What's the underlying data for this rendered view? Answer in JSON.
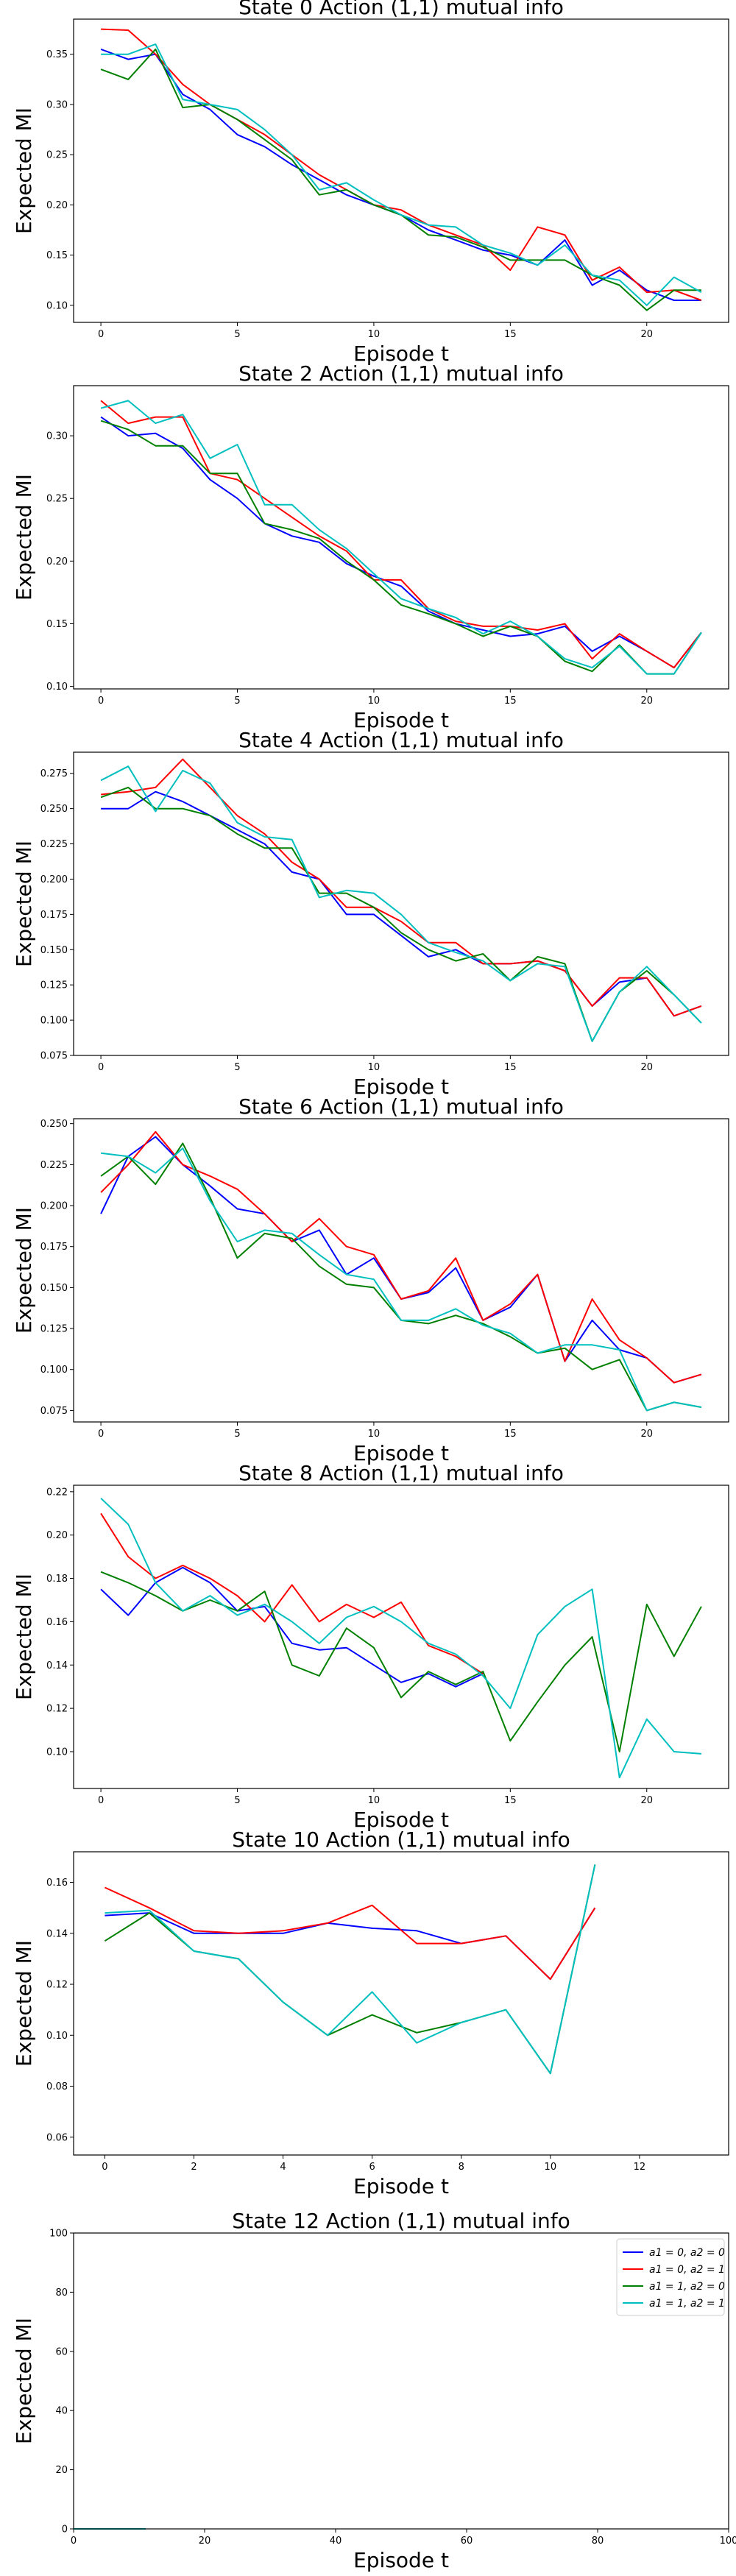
{
  "colors": {
    "a1=0, a2=0": "#0000ff",
    "a1=0, a2=1": "#ff0000",
    "a1=1, a2=0": "#008000",
    "a1=1, a2=1": "#00bfbf"
  },
  "legend": {
    "placement": "top-right",
    "entries": [
      "a1 = 0, a2 = 0",
      "a1 = 0, a2 = 1",
      "a1 = 1, a2 = 0",
      "a1 = 1, a2 = 1"
    ]
  },
  "chart_data": [
    {
      "type": "line",
      "title": "State 0 Action (1,1) mutual info",
      "xlabel": "Episode t",
      "ylabel": "Expected MI",
      "xlim": [
        -1,
        23
      ],
      "ylim": [
        0.083,
        0.385
      ],
      "xticks": [
        0,
        5,
        10,
        15,
        20
      ],
      "yticks": [
        0.1,
        0.15,
        0.2,
        0.25,
        0.3,
        0.35
      ],
      "ytick_labels": [
        "0.10",
        "0.15",
        "0.20",
        "0.25",
        "0.30",
        "0.35"
      ],
      "grid": false,
      "x": [
        0,
        1,
        2,
        3,
        4,
        5,
        6,
        7,
        8,
        9,
        10,
        11,
        12,
        13,
        14,
        15,
        16,
        17,
        18,
        19,
        20,
        21,
        22
      ],
      "series": [
        {
          "name": "a1=0, a2=0",
          "values": [
            0.355,
            0.345,
            0.35,
            0.31,
            0.295,
            0.27,
            0.258,
            0.24,
            0.225,
            0.21,
            0.2,
            0.19,
            0.175,
            0.165,
            0.155,
            0.15,
            0.14,
            0.165,
            0.12,
            0.135,
            0.115,
            0.105,
            0.105
          ]
        },
        {
          "name": "a1=0, a2=1",
          "values": [
            0.375,
            0.374,
            0.35,
            0.32,
            0.3,
            0.285,
            0.27,
            0.25,
            0.23,
            0.215,
            0.2,
            0.195,
            0.18,
            0.17,
            0.16,
            0.135,
            0.178,
            0.17,
            0.125,
            0.138,
            0.113,
            0.115,
            0.105
          ]
        },
        {
          "name": "a1=1, a2=0",
          "values": [
            0.335,
            0.325,
            0.355,
            0.297,
            0.3,
            0.285,
            0.265,
            0.245,
            0.21,
            0.215,
            0.2,
            0.19,
            0.17,
            0.168,
            0.158,
            0.145,
            0.145,
            0.145,
            0.13,
            0.12,
            0.095,
            0.115,
            0.115
          ]
        },
        {
          "name": "a1=1, a2=1",
          "values": [
            0.35,
            0.35,
            0.36,
            0.305,
            0.3,
            0.295,
            0.275,
            0.25,
            0.215,
            0.222,
            0.205,
            0.19,
            0.18,
            0.178,
            0.16,
            0.152,
            0.14,
            0.16,
            0.13,
            0.125,
            0.1,
            0.128,
            0.113
          ]
        }
      ]
    },
    {
      "type": "line",
      "title": "State 2 Action (1,1) mutual info",
      "xlabel": "Episode t",
      "ylabel": "Expected MI",
      "xlim": [
        -1,
        23
      ],
      "ylim": [
        0.098,
        0.34
      ],
      "xticks": [
        0,
        5,
        10,
        15,
        20
      ],
      "yticks": [
        0.1,
        0.15,
        0.2,
        0.25,
        0.3
      ],
      "ytick_labels": [
        "0.10",
        "0.15",
        "0.20",
        "0.25",
        "0.30"
      ],
      "grid": false,
      "x": [
        0,
        1,
        2,
        3,
        4,
        5,
        6,
        7,
        8,
        9,
        10,
        11,
        12,
        13,
        14,
        15,
        16,
        17,
        18,
        19,
        20,
        21,
        22
      ],
      "series": [
        {
          "name": "a1=0, a2=0",
          "values": [
            0.315,
            0.3,
            0.302,
            0.29,
            0.265,
            0.25,
            0.23,
            0.22,
            0.215,
            0.198,
            0.188,
            0.18,
            0.16,
            0.15,
            0.145,
            0.14,
            0.142,
            0.148,
            0.128,
            0.14,
            0.128,
            0.115,
            0.143
          ]
        },
        {
          "name": "a1=0, a2=1",
          "values": [
            0.328,
            0.31,
            0.315,
            0.315,
            0.27,
            0.265,
            0.25,
            0.235,
            0.22,
            0.208,
            0.185,
            0.185,
            0.162,
            0.152,
            0.148,
            0.148,
            0.145,
            0.15,
            0.122,
            0.142,
            0.128,
            0.115,
            0.143
          ]
        },
        {
          "name": "a1=1, a2=0",
          "values": [
            0.312,
            0.305,
            0.292,
            0.292,
            0.27,
            0.27,
            0.23,
            0.225,
            0.218,
            0.2,
            0.185,
            0.165,
            0.158,
            0.15,
            0.14,
            0.148,
            0.14,
            0.12,
            0.112,
            0.133,
            0.11,
            0.11,
            0.143
          ]
        },
        {
          "name": "a1=1, a2=1",
          "values": [
            0.322,
            0.328,
            0.31,
            0.317,
            0.282,
            0.293,
            0.245,
            0.245,
            0.225,
            0.21,
            0.19,
            0.17,
            0.162,
            0.155,
            0.142,
            0.152,
            0.14,
            0.122,
            0.115,
            0.132,
            0.11,
            0.11,
            0.143
          ]
        }
      ]
    },
    {
      "type": "line",
      "title": "State 4 Action (1,1) mutual info",
      "xlabel": "Episode t",
      "ylabel": "Expected MI",
      "xlim": [
        -1,
        23
      ],
      "ylim": [
        0.075,
        0.29
      ],
      "xticks": [
        0,
        5,
        10,
        15,
        20
      ],
      "yticks": [
        0.075,
        0.1,
        0.125,
        0.15,
        0.175,
        0.2,
        0.225,
        0.25,
        0.275
      ],
      "ytick_labels": [
        "0.075",
        "0.100",
        "0.125",
        "0.150",
        "0.175",
        "0.200",
        "0.225",
        "0.250",
        "0.275"
      ],
      "grid": false,
      "x": [
        0,
        1,
        2,
        3,
        4,
        5,
        6,
        7,
        8,
        9,
        10,
        11,
        12,
        13,
        14,
        15,
        16,
        17,
        18,
        19,
        20,
        21,
        22
      ],
      "series": [
        {
          "name": "a1=0, a2=0",
          "values": [
            0.25,
            0.25,
            0.262,
            0.255,
            0.245,
            0.235,
            0.225,
            0.205,
            0.2,
            0.175,
            0.175,
            0.16,
            0.145,
            0.15,
            0.14,
            0.14,
            0.142,
            0.135,
            0.11,
            0.127,
            0.13,
            0.103,
            0.11
          ]
        },
        {
          "name": "a1=0, a2=1",
          "values": [
            0.26,
            0.262,
            0.265,
            0.285,
            0.265,
            0.245,
            0.232,
            0.212,
            0.2,
            0.18,
            0.18,
            0.17,
            0.155,
            0.155,
            0.14,
            0.14,
            0.142,
            0.135,
            0.11,
            0.13,
            0.13,
            0.103,
            0.11
          ]
        },
        {
          "name": "a1=1, a2=0",
          "values": [
            0.258,
            0.265,
            0.25,
            0.25,
            0.245,
            0.232,
            0.222,
            0.222,
            0.19,
            0.19,
            0.18,
            0.162,
            0.15,
            0.142,
            0.147,
            0.128,
            0.145,
            0.14,
            0.085,
            0.12,
            0.135,
            0.118,
            0.098
          ]
        },
        {
          "name": "a1=1, a2=1",
          "values": [
            0.27,
            0.28,
            0.248,
            0.277,
            0.268,
            0.24,
            0.23,
            0.228,
            0.187,
            0.192,
            0.19,
            0.175,
            0.155,
            0.148,
            0.142,
            0.128,
            0.14,
            0.138,
            0.085,
            0.12,
            0.138,
            0.118,
            0.098
          ]
        }
      ]
    },
    {
      "type": "line",
      "title": "State 6 Action (1,1) mutual info",
      "xlabel": "Episode t",
      "ylabel": "Expected MI",
      "xlim": [
        -1,
        23
      ],
      "ylim": [
        0.068,
        0.253
      ],
      "xticks": [
        0,
        5,
        10,
        15,
        20
      ],
      "yticks": [
        0.075,
        0.1,
        0.125,
        0.15,
        0.175,
        0.2,
        0.225,
        0.25
      ],
      "ytick_labels": [
        "0.075",
        "0.100",
        "0.125",
        "0.150",
        "0.175",
        "0.200",
        "0.225",
        "0.250"
      ],
      "grid": false,
      "x": [
        0,
        1,
        2,
        3,
        4,
        5,
        6,
        7,
        8,
        9,
        10,
        11,
        12,
        13,
        14,
        15,
        16,
        17,
        18,
        19,
        20,
        21,
        22
      ],
      "series": [
        {
          "name": "a1=0, a2=0",
          "values": [
            0.195,
            0.23,
            0.242,
            0.225,
            0.212,
            0.198,
            0.195,
            0.178,
            0.185,
            0.158,
            0.168,
            0.143,
            0.147,
            0.162,
            0.13,
            0.138,
            0.158,
            0.105,
            0.13,
            0.112,
            0.107,
            0.092,
            0.097
          ]
        },
        {
          "name": "a1=0, a2=1",
          "values": [
            0.208,
            0.225,
            0.245,
            0.225,
            0.218,
            0.21,
            0.195,
            0.178,
            0.192,
            0.175,
            0.17,
            0.143,
            0.148,
            0.168,
            0.13,
            0.14,
            0.158,
            0.105,
            0.143,
            0.118,
            0.107,
            0.092,
            0.097
          ]
        },
        {
          "name": "a1=1, a2=0",
          "values": [
            0.218,
            0.23,
            0.213,
            0.238,
            0.205,
            0.168,
            0.183,
            0.18,
            0.163,
            0.152,
            0.15,
            0.13,
            0.128,
            0.133,
            0.128,
            0.12,
            0.11,
            0.113,
            0.1,
            0.106,
            0.075,
            0.08,
            0.077
          ]
        },
        {
          "name": "a1=1, a2=1",
          "values": [
            0.232,
            0.23,
            0.22,
            0.235,
            0.203,
            0.178,
            0.185,
            0.183,
            0.17,
            0.158,
            0.155,
            0.13,
            0.13,
            0.137,
            0.127,
            0.122,
            0.11,
            0.115,
            0.115,
            0.112,
            0.075,
            0.08,
            0.077
          ]
        }
      ]
    },
    {
      "type": "line",
      "title": "State 8 Action (1,1) mutual info",
      "xlabel": "Episode t",
      "ylabel": "Expected MI",
      "xlim": [
        -1,
        23
      ],
      "ylim": [
        0.083,
        0.223
      ],
      "xticks": [
        0,
        5,
        10,
        15,
        20
      ],
      "yticks": [
        0.1,
        0.12,
        0.14,
        0.16,
        0.18,
        0.2,
        0.22
      ],
      "ytick_labels": [
        "0.10",
        "0.12",
        "0.14",
        "0.16",
        "0.18",
        "0.20",
        "0.22"
      ],
      "grid": false,
      "x": [
        0,
        1,
        2,
        3,
        4,
        5,
        6,
        7,
        8,
        9,
        10,
        11,
        12,
        13,
        14,
        15,
        16,
        17,
        18,
        19,
        20,
        21,
        22
      ],
      "series": [
        {
          "name": "a1=0, a2=0",
          "values": [
            0.175,
            0.163,
            0.178,
            0.185,
            0.178,
            0.165,
            0.167,
            0.15,
            0.147,
            0.148,
            0.14,
            0.132,
            0.136,
            0.13,
            0.136,
            null,
            null,
            null,
            null,
            null,
            null,
            null,
            null
          ]
        },
        {
          "name": "a1=0, a2=1",
          "values": [
            0.21,
            0.19,
            0.18,
            0.186,
            0.18,
            0.172,
            0.16,
            0.177,
            0.16,
            0.168,
            0.162,
            0.169,
            0.149,
            0.144,
            0.136,
            null,
            null,
            null,
            null,
            null,
            null,
            null,
            null
          ]
        },
        {
          "name": "a1=1, a2=0",
          "values": [
            0.183,
            0.178,
            0.172,
            0.165,
            0.17,
            0.165,
            0.174,
            0.14,
            0.135,
            0.157,
            0.148,
            0.125,
            0.137,
            0.131,
            0.137,
            0.105,
            0.123,
            0.14,
            0.153,
            0.1,
            0.168,
            0.144,
            0.167
          ]
        },
        {
          "name": "a1=1, a2=1",
          "values": [
            0.217,
            0.205,
            0.178,
            0.165,
            0.172,
            0.163,
            0.168,
            0.16,
            0.15,
            0.162,
            0.167,
            0.16,
            0.15,
            0.145,
            0.135,
            0.12,
            0.154,
            0.167,
            0.175,
            0.088,
            0.115,
            0.1,
            0.099
          ]
        }
      ]
    },
    {
      "type": "line",
      "title": "State 10 Action (1,1) mutual info",
      "xlabel": "Episode t",
      "ylabel": "Expected MI",
      "xlim": [
        -0.7,
        14
      ],
      "ylim": [
        0.053,
        0.172
      ],
      "xticks": [
        0,
        2,
        4,
        6,
        8,
        10,
        12
      ],
      "yticks": [
        0.06,
        0.08,
        0.1,
        0.12,
        0.14,
        0.16
      ],
      "ytick_labels": [
        "0.06",
        "0.08",
        "0.10",
        "0.12",
        "0.14",
        "0.16"
      ],
      "grid": false,
      "x": [
        0,
        1,
        2,
        3,
        4,
        5,
        6,
        7,
        8,
        9,
        10,
        11
      ],
      "series": [
        {
          "name": "a1=0, a2=0",
          "values": [
            0.147,
            0.148,
            0.14,
            0.14,
            0.14,
            0.144,
            0.142,
            0.141,
            0.136,
            0.139,
            0.122,
            0.15
          ]
        },
        {
          "name": "a1=0, a2=1",
          "values": [
            0.158,
            0.15,
            0.141,
            0.14,
            0.141,
            0.144,
            0.151,
            0.136,
            0.136,
            0.139,
            0.122,
            0.15
          ]
        },
        {
          "name": "a1=1, a2=0",
          "values": [
            0.137,
            0.148,
            0.133,
            0.13,
            0.113,
            0.1,
            0.108,
            0.101,
            0.105,
            0.11,
            0.085,
            0.167
          ]
        },
        {
          "name": "a1=1, a2=1",
          "values": [
            0.148,
            0.149,
            0.133,
            0.13,
            0.113,
            0.1,
            0.117,
            0.097,
            0.105,
            0.11,
            0.085,
            0.167
          ]
        }
      ]
    },
    {
      "type": "line",
      "title": "State 12 Action (1,1) mutual info",
      "xlabel": "Episode t",
      "ylabel": "Expected MI",
      "xlim": [
        0,
        100
      ],
      "ylim": [
        0,
        100
      ],
      "xticks": [
        0,
        20,
        40,
        60,
        80,
        100
      ],
      "yticks": [
        0,
        20,
        40,
        60,
        80,
        100
      ],
      "ytick_labels": [
        "0",
        "20",
        "40",
        "60",
        "80",
        "100"
      ],
      "grid": false,
      "x": [
        0,
        11
      ],
      "series": [
        {
          "name": "a1=0, a2=0",
          "values": [
            0,
            0
          ]
        },
        {
          "name": "a1=0, a2=1",
          "values": [
            0,
            0
          ]
        },
        {
          "name": "a1=1, a2=0",
          "values": [
            0,
            0
          ]
        },
        {
          "name": "a1=1, a2=1",
          "values": [
            0,
            0
          ]
        }
      ]
    }
  ]
}
